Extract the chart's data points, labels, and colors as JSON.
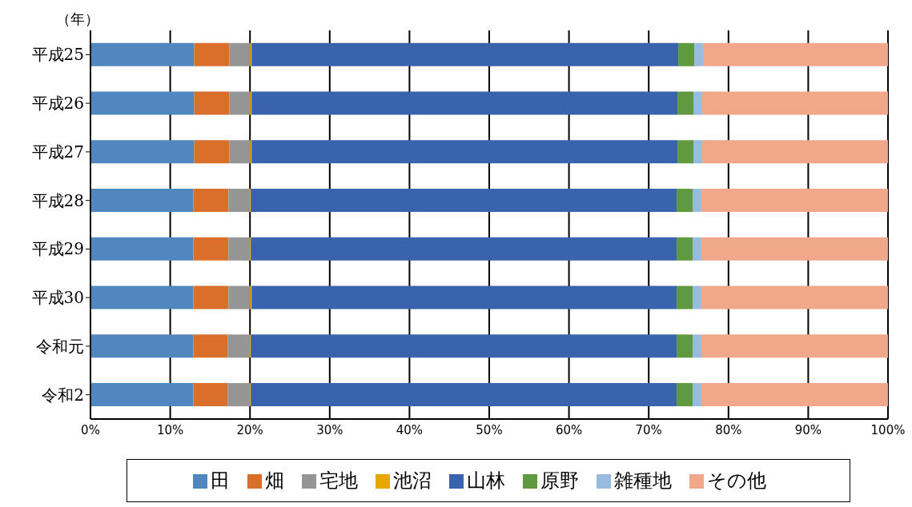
{
  "chart_data": {
    "type": "bar",
    "orientation": "horizontal",
    "stacked": true,
    "ylabel": "（年）",
    "categories": [
      "平成25",
      "平成26",
      "平成27",
      "平成28",
      "平成29",
      "平成30",
      "令和元",
      "令和2"
    ],
    "series": [
      {
        "name": "田",
        "color": "#4f87be",
        "values": [
          13.0,
          13.0,
          13.0,
          12.9,
          12.9,
          12.9,
          12.9,
          12.9
        ]
      },
      {
        "name": "畑",
        "color": "#d96f2a",
        "values": [
          4.4,
          4.4,
          4.4,
          4.4,
          4.4,
          4.4,
          4.3,
          4.3
        ]
      },
      {
        "name": "宅地",
        "color": "#959595",
        "values": [
          2.6,
          2.6,
          2.6,
          2.6,
          2.6,
          2.7,
          2.7,
          2.7
        ]
      },
      {
        "name": "池沼",
        "color": "#e5a800",
        "values": [
          0.2,
          0.2,
          0.2,
          0.2,
          0.2,
          0.2,
          0.2,
          0.2
        ]
      },
      {
        "name": "山林",
        "color": "#3a63ad",
        "values": [
          53.5,
          53.4,
          53.4,
          53.4,
          53.4,
          53.3,
          53.4,
          53.4
        ]
      },
      {
        "name": "原野",
        "color": "#5f9940",
        "values": [
          2.0,
          2.0,
          2.0,
          2.0,
          2.0,
          2.0,
          2.0,
          2.0
        ]
      },
      {
        "name": "雑種地",
        "color": "#98bbe0",
        "values": [
          1.1,
          1.1,
          1.1,
          1.1,
          1.1,
          1.1,
          1.1,
          1.1
        ]
      },
      {
        "name": "その他",
        "color": "#f1a78a",
        "values": [
          23.2,
          23.3,
          23.3,
          23.4,
          23.4,
          23.4,
          23.4,
          23.4
        ]
      }
    ],
    "xlim": [
      0,
      100
    ],
    "xticks": [
      {
        "value": 0,
        "label": "0%"
      },
      {
        "value": 10,
        "label": "10%"
      },
      {
        "value": 20,
        "label": "20%"
      },
      {
        "value": 30,
        "label": "30%"
      },
      {
        "value": 40,
        "label": "40%"
      },
      {
        "value": 50,
        "label": "50%"
      },
      {
        "value": 60,
        "label": "60%"
      },
      {
        "value": 70,
        "label": "70%"
      },
      {
        "value": 80,
        "label": "80%"
      },
      {
        "value": 90,
        "label": "90%"
      },
      {
        "value": 100,
        "label": "100%"
      }
    ],
    "grid": "x",
    "legend": "bottom"
  }
}
